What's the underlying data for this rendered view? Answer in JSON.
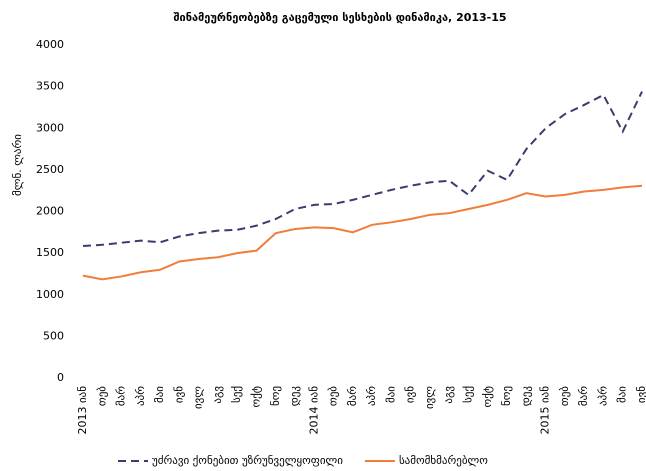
{
  "chart_data": {
    "type": "line",
    "title": "შინამეურნეობებზე გაცემული სესხების დინამიკა, 2013-15",
    "y_label": "მლნ. ლარი",
    "categories": [
      "2013 იან",
      "თებ",
      "მარ",
      "აპრ",
      "მაი",
      "ივნ",
      "ივლ",
      "აგვ",
      "სექ",
      "ოქტ",
      "ნოე",
      "დეკ",
      "2014 იან",
      "თებ",
      "მარ",
      "აპრ",
      "მაი",
      "ივნ",
      "ივლ",
      "აგვ",
      "სექ",
      "ოქტ",
      "ნოე",
      "დეკ",
      "2015 იან",
      "თებ",
      "მარ",
      "აპრ",
      "მაი",
      "ივნ"
    ],
    "series": [
      {
        "name": "უძრავი ქონებით უზრუნველყოფილი",
        "color": "#3d3b6e",
        "dashed": true,
        "values": [
          1585,
          1600,
          1625,
          1650,
          1630,
          1700,
          1740,
          1770,
          1780,
          1830,
          1910,
          2030,
          2080,
          2090,
          2140,
          2200,
          2260,
          2310,
          2350,
          2370,
          2200,
          2490,
          2380,
          2750,
          3000,
          3170,
          3280,
          3400,
          2960,
          3440
        ]
      },
      {
        "name": "სამომხმარებლო",
        "color": "#f07d3a",
        "dashed": false,
        "values": [
          1230,
          1185,
          1220,
          1270,
          1300,
          1400,
          1430,
          1450,
          1500,
          1530,
          1740,
          1790,
          1810,
          1800,
          1750,
          1840,
          1870,
          1910,
          1960,
          1980,
          2030,
          2080,
          2140,
          2220,
          2180,
          2200,
          2240,
          2260,
          2290,
          2310
        ]
      }
    ],
    "ylim": [
      0,
      4000
    ],
    "yticks": [
      0,
      500,
      1000,
      1500,
      2000,
      2500,
      3000,
      3500,
      4000
    ],
    "grid": false
  }
}
